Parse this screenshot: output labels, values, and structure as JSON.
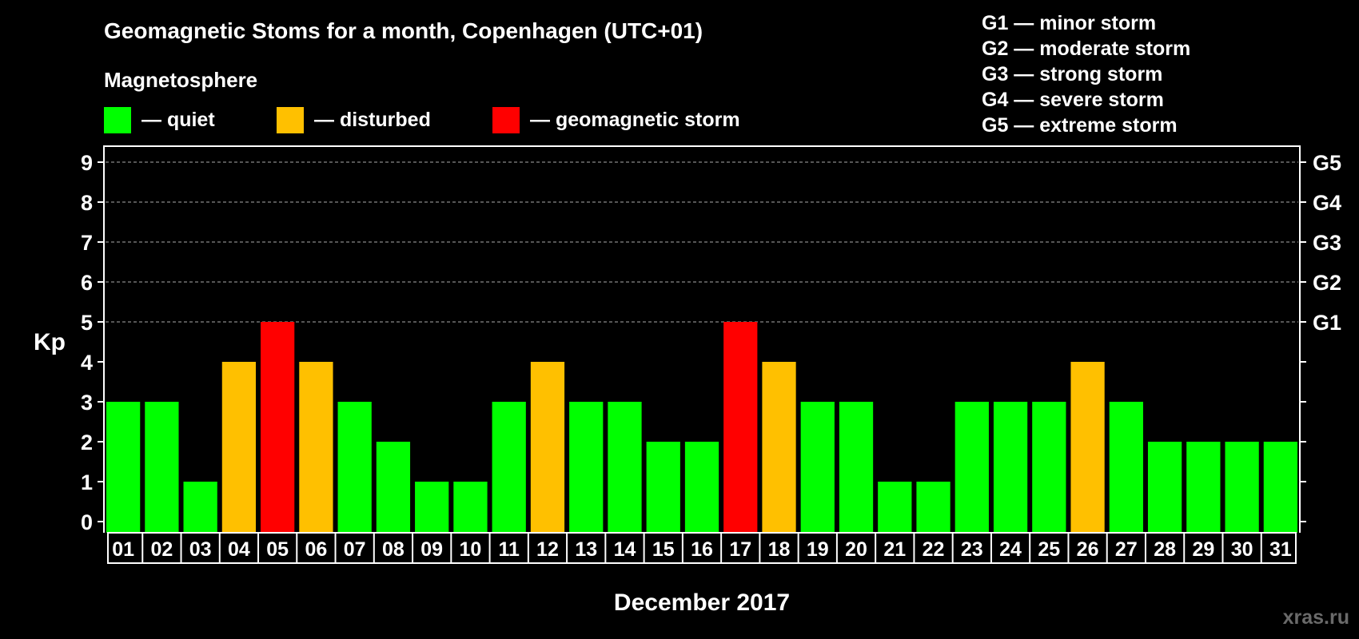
{
  "chart_data": {
    "type": "bar",
    "title": "Geomagnetic Stoms for a month, Copenhagen (UTC+01)",
    "subtitle": "Magnetosphere",
    "xlabel": "December 2017",
    "ylabel": "Kp",
    "ylim": [
      0,
      9
    ],
    "yticks": [
      "0",
      "1",
      "2",
      "3",
      "4",
      "5",
      "6",
      "7",
      "8",
      "9"
    ],
    "grid": "dashed horizontal lines at Kp 5-9",
    "categories": [
      "01",
      "02",
      "03",
      "04",
      "05",
      "06",
      "07",
      "08",
      "09",
      "10",
      "11",
      "12",
      "13",
      "14",
      "15",
      "16",
      "17",
      "18",
      "19",
      "20",
      "21",
      "22",
      "23",
      "24",
      "25",
      "26",
      "27",
      "28",
      "29",
      "30",
      "31"
    ],
    "values": [
      3,
      3,
      1,
      4,
      5,
      4,
      3,
      2,
      1,
      1,
      3,
      4,
      3,
      3,
      2,
      2,
      5,
      4,
      3,
      3,
      1,
      1,
      3,
      3,
      3,
      4,
      3,
      2,
      2,
      2,
      2
    ],
    "status_legend": [
      {
        "label": "— quiet",
        "color": "#00ff00",
        "rule": "Kp < 4"
      },
      {
        "label": "— disturbed",
        "color": "#ffc000",
        "rule": "Kp = 4"
      },
      {
        "label": "— geomagnetic storm",
        "color": "#ff0000",
        "rule": "Kp >= 5"
      }
    ],
    "storm_scale": [
      {
        "level": "G1",
        "kp": 5,
        "description": "G1 — minor storm"
      },
      {
        "level": "G2",
        "kp": 6,
        "description": "G2 — moderate storm"
      },
      {
        "level": "G3",
        "kp": 7,
        "description": "G3 — strong storm"
      },
      {
        "level": "G4",
        "kp": 8,
        "description": "G4 — severe storm"
      },
      {
        "level": "G5",
        "kp": 9,
        "description": "G5 — extreme storm"
      }
    ]
  },
  "watermark": "xras.ru",
  "colors": {
    "background": "#000000",
    "quiet": "#00ff00",
    "disturbed": "#ffc000",
    "storm": "#ff0000",
    "axis": "#ffffff",
    "grid": "#8a8a8a",
    "watermark": "#6a6a6a"
  }
}
